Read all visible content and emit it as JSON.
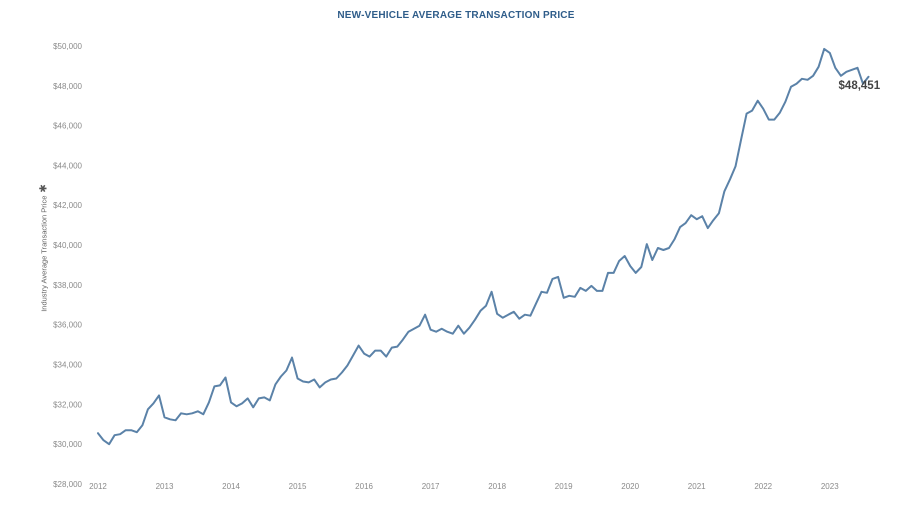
{
  "chart_data": {
    "type": "line",
    "title": "NEW-VEHICLE AVERAGE TRANSACTION PRICE",
    "xlabel": "",
    "ylabel": "Industry Average Transaction Price",
    "ylabel_mark": "✱",
    "ylim": [
      28000,
      50800
    ],
    "xlim": [
      2011.85,
      2023.65
    ],
    "grid": false,
    "line_color": "#5b82a8",
    "y_ticks": [
      {
        "value": 28000,
        "label": "$28,000"
      },
      {
        "value": 30000,
        "label": "$30,000"
      },
      {
        "value": 32000,
        "label": "$32,000"
      },
      {
        "value": 34000,
        "label": "$34,000"
      },
      {
        "value": 36000,
        "label": "$36,000"
      },
      {
        "value": 38000,
        "label": "$38,000"
      },
      {
        "value": 40000,
        "label": "$40,000"
      },
      {
        "value": 42000,
        "label": "$42,000"
      },
      {
        "value": 44000,
        "label": "$44,000"
      },
      {
        "value": 46000,
        "label": "$46,000"
      },
      {
        "value": 48000,
        "label": "$48,000"
      },
      {
        "value": 50000,
        "label": "$50,000"
      }
    ],
    "x_ticks": [
      {
        "value": 2012,
        "label": "2012"
      },
      {
        "value": 2013,
        "label": "2013"
      },
      {
        "value": 2014,
        "label": "2014"
      },
      {
        "value": 2015,
        "label": "2015"
      },
      {
        "value": 2016,
        "label": "2016"
      },
      {
        "value": 2017,
        "label": "2017"
      },
      {
        "value": 2018,
        "label": "2018"
      },
      {
        "value": 2019,
        "label": "2019"
      },
      {
        "value": 2020,
        "label": "2020"
      },
      {
        "value": 2021,
        "label": "2021"
      },
      {
        "value": 2022,
        "label": "2022"
      },
      {
        "value": 2023,
        "label": "2023"
      }
    ],
    "last_value_label": "$48,451",
    "series": [
      {
        "x": [
          2012.0,
          2012.083,
          2012.167,
          2012.25,
          2012.333,
          2012.417,
          2012.5,
          2012.583,
          2012.667,
          2012.75,
          2012.833,
          2012.917,
          2013.0,
          2013.083,
          2013.167,
          2013.25,
          2013.333,
          2013.417,
          2013.5,
          2013.583,
          2013.667,
          2013.75,
          2013.833,
          2013.917,
          2014.0,
          2014.083,
          2014.167,
          2014.25,
          2014.333,
          2014.417,
          2014.5,
          2014.583,
          2014.667,
          2014.75,
          2014.833,
          2014.917,
          2015.0,
          2015.083,
          2015.167,
          2015.25,
          2015.333,
          2015.417,
          2015.5,
          2015.583,
          2015.667,
          2015.75,
          2015.833,
          2015.917,
          2016.0,
          2016.083,
          2016.167,
          2016.25,
          2016.333,
          2016.417,
          2016.5,
          2016.583,
          2016.667,
          2016.75,
          2016.833,
          2016.917,
          2017.0,
          2017.083,
          2017.167,
          2017.25,
          2017.333,
          2017.417,
          2017.5,
          2017.583,
          2017.667,
          2017.75,
          2017.833,
          2017.917,
          2018.0,
          2018.083,
          2018.167,
          2018.25,
          2018.333,
          2018.417,
          2018.5,
          2018.583,
          2018.667,
          2018.75,
          2018.833,
          2018.917,
          2019.0,
          2019.083,
          2019.167,
          2019.25,
          2019.333,
          2019.417,
          2019.5,
          2019.583,
          2019.667,
          2019.75,
          2019.833,
          2019.917,
          2020.0,
          2020.083,
          2020.167,
          2020.25,
          2020.333,
          2020.417,
          2020.5,
          2020.583,
          2020.667,
          2020.75,
          2020.833,
          2020.917,
          2021.0,
          2021.083,
          2021.167,
          2021.25,
          2021.333,
          2021.417,
          2021.5,
          2021.583,
          2021.667,
          2021.75,
          2021.833,
          2021.917,
          2022.0,
          2022.083,
          2022.167,
          2022.25,
          2022.333,
          2022.417,
          2022.5,
          2022.583,
          2022.667,
          2022.75,
          2022.833,
          2022.917,
          2023.0,
          2023.083,
          2023.167,
          2023.25,
          2023.333,
          2023.417,
          2023.5,
          2023.583
        ],
        "values": [
          30550,
          30200,
          30000,
          30450,
          30500,
          30700,
          30700,
          30600,
          30950,
          31750,
          32050,
          32450,
          31350,
          31250,
          31200,
          31550,
          31500,
          31550,
          31650,
          31500,
          32100,
          32900,
          32950,
          33350,
          32100,
          31900,
          32050,
          32300,
          31850,
          32300,
          32350,
          32200,
          33000,
          33400,
          33700,
          34350,
          33300,
          33150,
          33100,
          33250,
          32850,
          33100,
          33250,
          33300,
          33600,
          33950,
          34450,
          34950,
          34550,
          34400,
          34700,
          34700,
          34400,
          34850,
          34900,
          35250,
          35650,
          35800,
          35950,
          36500,
          35750,
          35650,
          35800,
          35650,
          35550,
          35950,
          35550,
          35850,
          36250,
          36700,
          36950,
          37650,
          36550,
          36350,
          36500,
          36650,
          36300,
          36500,
          36450,
          37050,
          37650,
          37600,
          38300,
          38400,
          37350,
          37450,
          37400,
          37850,
          37700,
          37950,
          37700,
          37700,
          38600,
          38600,
          39200,
          39450,
          38950,
          38600,
          38900,
          40050,
          39250,
          39850,
          39750,
          39850,
          40300,
          40900,
          41100,
          41500,
          41300,
          41450,
          40850,
          41250,
          41600,
          42700,
          43300,
          43950,
          45300,
          46600,
          46750,
          47250,
          46850,
          46300,
          46300,
          46650,
          47200,
          47950,
          48100,
          48350,
          48300,
          48500,
          48950,
          49850,
          49650,
          48900,
          48500,
          48700,
          48800,
          48900,
          48100,
          48451
        ]
      }
    ]
  }
}
